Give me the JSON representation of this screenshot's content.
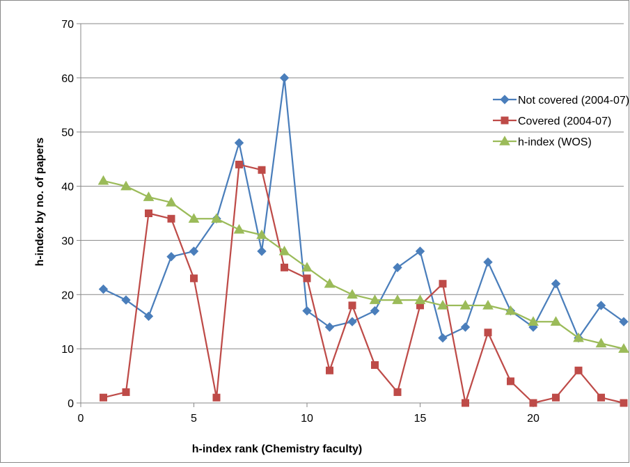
{
  "chart_data": {
    "type": "line",
    "title": "",
    "xlabel": "h-index rank (Chemistry faculty)",
    "ylabel": "h-index by no. of papers",
    "xlim": [
      0,
      24
    ],
    "ylim": [
      0,
      70
    ],
    "xticks": [
      0,
      5,
      10,
      15,
      20
    ],
    "yticks": [
      0,
      10,
      20,
      30,
      40,
      50,
      60,
      70
    ],
    "grid": "horizontal",
    "legend": "top-right",
    "x": [
      1,
      2,
      3,
      4,
      5,
      6,
      7,
      8,
      9,
      10,
      11,
      12,
      13,
      14,
      15,
      16,
      17,
      18,
      19,
      20,
      21,
      22,
      23,
      24
    ],
    "series": [
      {
        "name": "Not covered (2004-07)",
        "color": "#4a7ebb",
        "marker": "diamond",
        "values": [
          21,
          19,
          16,
          27,
          28,
          34,
          48,
          28,
          60,
          17,
          14,
          15,
          17,
          25,
          28,
          12,
          14,
          26,
          17,
          14,
          22,
          12,
          18,
          15
        ]
      },
      {
        "name": "Covered (2004-07)",
        "color": "#be4b48",
        "marker": "square",
        "values": [
          1,
          2,
          35,
          34,
          23,
          1,
          44,
          43,
          25,
          23,
          6,
          18,
          7,
          2,
          18,
          22,
          0,
          13,
          4,
          0,
          1,
          6,
          1,
          0
        ]
      },
      {
        "name": "h-index (WOS)",
        "color": "#9bbb59",
        "marker": "triangle",
        "values": [
          41,
          40,
          38,
          37,
          34,
          34,
          32,
          31,
          28,
          25,
          22,
          20,
          19,
          19,
          19,
          18,
          18,
          18,
          17,
          15,
          15,
          12,
          11,
          10
        ]
      }
    ]
  }
}
